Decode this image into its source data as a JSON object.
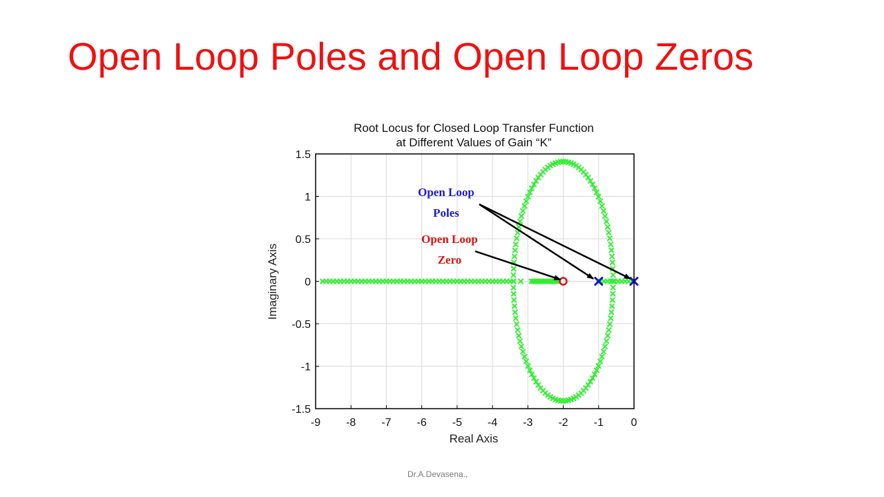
{
  "slide": {
    "title": "Open Loop Poles and Open Loop Zeros",
    "footer": "Dr.A.Devasena.,"
  },
  "chart_data": {
    "type": "scatter",
    "title": [
      "Root Locus for Closed Loop Transfer Function",
      "at Different Values of Gain “K”"
    ],
    "xlabel": "Real Axis",
    "ylabel": "Imaginary Axis",
    "xlim": [
      -9,
      0
    ],
    "ylim": [
      -1.5,
      1.5
    ],
    "xticks": [
      -9,
      -8,
      -7,
      -6,
      -5,
      -4,
      -3,
      -2,
      -1,
      0
    ],
    "yticks": [
      -1.5,
      -1,
      -0.5,
      0,
      0.5,
      1,
      1.5
    ],
    "grid": true,
    "colors": {
      "locus": "#33ee33",
      "pole": "#1515cc",
      "zero": "#e01010",
      "annotation_blue": "#1a1acc",
      "annotation_red": "#dd1111"
    },
    "open_loop_poles": [
      {
        "x": 0,
        "y": 0
      },
      {
        "x": -1,
        "y": 0
      }
    ],
    "open_loop_zeros": [
      {
        "x": -2,
        "y": 0
      }
    ],
    "locus": {
      "ellipse_center": [
        -2,
        0
      ],
      "ellipse_real_semi_axis": 1.41,
      "ellipse_imag_semi_axis": 1.41,
      "real_axis_branch_from": -8.8,
      "real_axis_branch_to": -2.15,
      "between_poles_from": -0.95,
      "between_poles_to": -0.05
    },
    "annotations": [
      {
        "id": "poles",
        "lines": [
          "Open Loop",
          "Poles"
        ],
        "color": "annotation_blue",
        "points_to": [
          {
            "x": -1.15,
            "y": 0.03
          },
          {
            "x": -0.1,
            "y": 0.03
          }
        ]
      },
      {
        "id": "zero",
        "lines": [
          "Open Loop",
          "Zero"
        ],
        "color": "annotation_red",
        "points_to": [
          {
            "x": -2.08,
            "y": 0.02
          }
        ]
      }
    ]
  }
}
